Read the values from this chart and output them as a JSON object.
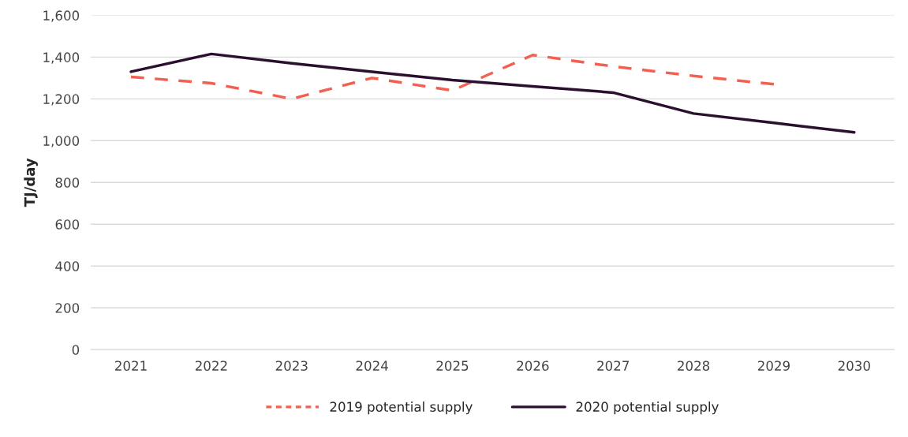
{
  "chart_data": {
    "type": "line",
    "ylabel": "TJ/day",
    "categories": [
      "2021",
      "2022",
      "2023",
      "2024",
      "2025",
      "2026",
      "2027",
      "2028",
      "2029",
      "2030"
    ],
    "series": [
      {
        "name": "2019 potential supply",
        "color": "#f26052",
        "line_style": "dashed",
        "values": [
          1305,
          1275,
          1200,
          1300,
          1240,
          1410,
          1355,
          1310,
          1270,
          null
        ]
      },
      {
        "name": "2020 potential supply",
        "color": "#2b0f2e",
        "line_style": "solid",
        "values": [
          1330,
          1415,
          1370,
          1330,
          1290,
          1260,
          1230,
          1130,
          1085,
          1040
        ]
      }
    ],
    "ylim": [
      0,
      1600
    ],
    "yticks": [
      0,
      {
        "value": 200,
        "label": "200"
      },
      {
        "value": 400,
        "label": "400"
      },
      {
        "value": 600,
        "label": "600"
      },
      {
        "value": 800,
        "label": "800"
      },
      {
        "value": 1000,
        "label": "1,000"
      },
      {
        "value": 1200,
        "label": "1,200"
      },
      {
        "value": 1400,
        "label": "1,400"
      },
      {
        "value": 1600,
        "label": "1,600"
      }
    ],
    "grid": "y",
    "legend": "bottom"
  }
}
